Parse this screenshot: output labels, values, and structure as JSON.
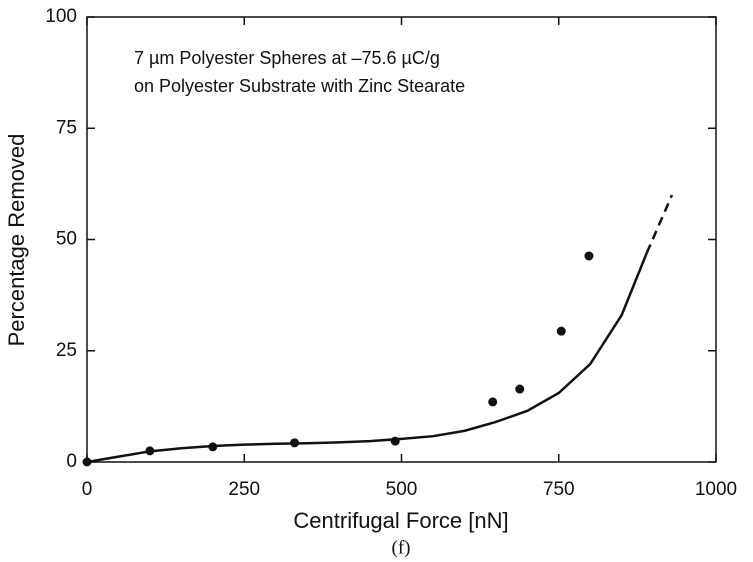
{
  "chart_data": {
    "type": "scatter",
    "annotations": [
      "7 µm Polyester Spheres at –75.6 µC/g",
      "on Polyester Substrate with Zinc Stearate"
    ],
    "xlabel": "Centrifugal Force  [nN]",
    "ylabel": "Percentage Removed",
    "caption": "(f)",
    "xlim": [
      0,
      1000
    ],
    "xticks": [
      0,
      250,
      500,
      750,
      1000
    ],
    "ylim": [
      0,
      100
    ],
    "yticks": [
      0,
      25,
      50,
      75,
      100
    ],
    "series": [
      {
        "type": "scatter",
        "color": "#111",
        "x": [
          0,
          100,
          200,
          330,
          490,
          645,
          688,
          754,
          798
        ],
        "values": [
          0,
          2.5,
          3.4,
          4.3,
          4.7,
          13.5,
          16.4,
          29.4,
          46.3
        ]
      },
      {
        "type": "line",
        "color": "#111",
        "x": [
          0,
          50,
          100,
          150,
          200,
          250,
          300,
          350,
          400,
          450,
          500,
          550,
          600,
          650,
          700,
          750,
          800,
          850,
          890
        ],
        "values": [
          0,
          1.2,
          2.4,
          3.1,
          3.6,
          3.9,
          4.1,
          4.2,
          4.4,
          4.7,
          5.2,
          5.8,
          7,
          9,
          11.5,
          15.5,
          22,
          33,
          47
        ]
      },
      {
        "type": "line",
        "dashed": true,
        "color": "#111",
        "x": [
          890,
          930
        ],
        "values": [
          47,
          60
        ]
      }
    ]
  }
}
